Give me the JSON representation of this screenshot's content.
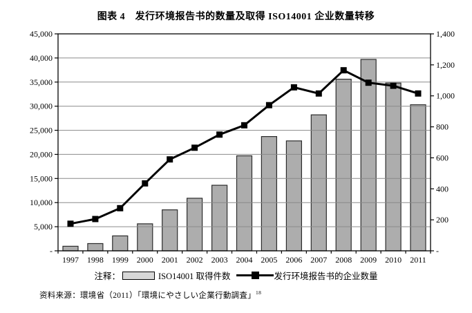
{
  "title": "图表 4　发行环境报告书的数量及取得 ISO14001 企业数量转移",
  "chart_data": {
    "type": "bar+line combo",
    "title": "图表 4　发行环境报告书的数量及取得 ISO14001 企业数量转移",
    "categories": [
      "1997",
      "1998",
      "1999",
      "2000",
      "2001",
      "2002",
      "2003",
      "2004",
      "2005",
      "2006",
      "2007",
      "2008",
      "2009",
      "2010",
      "2011"
    ],
    "series": [
      {
        "name": "ISO14001 取得件数",
        "type": "bar",
        "axis": "left",
        "values": [
          950,
          1500,
          3100,
          5600,
          8500,
          10900,
          13600,
          19700,
          23700,
          22800,
          28200,
          35600,
          39700,
          34800,
          30300
        ]
      },
      {
        "name": "发行环境报告书的企业数量",
        "type": "line",
        "axis": "right",
        "values": [
          175,
          205,
          275,
          435,
          590,
          665,
          750,
          810,
          940,
          1055,
          1015,
          1165,
          1085,
          1065,
          1015
        ]
      }
    ],
    "y_left": {
      "min": 0,
      "max": 45000,
      "step": 5000,
      "tick_labels": [
        "-",
        "5,000",
        "10,000",
        "15,000",
        "20,000",
        "25,000",
        "30,000",
        "35,000",
        "40,000",
        "45,000"
      ]
    },
    "y_right": {
      "min": 0,
      "max": 1400,
      "step": 200,
      "tick_labels": [
        "-",
        "200",
        "400",
        "600",
        "800",
        "1,000",
        "1,200",
        "1,400"
      ]
    },
    "grid": "horizontal",
    "legend_position": "bottom",
    "colors": {
      "bar_fill": "#adadad",
      "bar_stroke": "#2b2b2b",
      "line": "#000000",
      "marker": "#000000",
      "gridline": "#8a8a8a",
      "frame": "#000000",
      "legend_swatch": "#d7d7d7"
    }
  },
  "legend": {
    "prefix": "注释：",
    "bar_label": "ISO14001 取得件数",
    "line_label": "发行环境报告书的企业数量"
  },
  "source": {
    "text": "资料来源：環境省（2011）「環境にやさしい企業行動調査」",
    "footnote_ref": "18"
  }
}
